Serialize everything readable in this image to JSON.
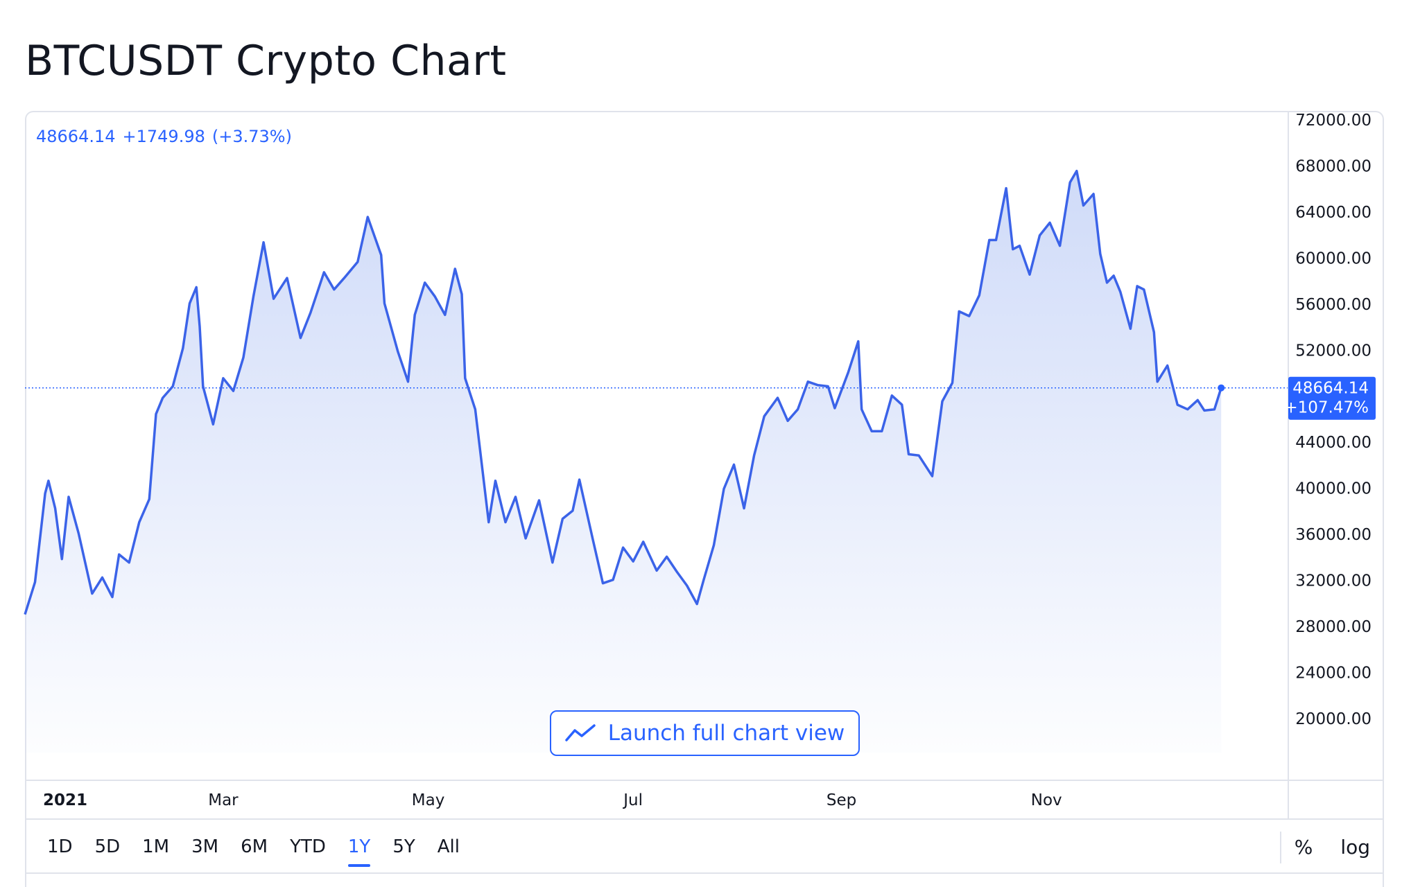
{
  "page": {
    "title": "BTCUSDT Crypto Chart"
  },
  "readout": {
    "last": "48664.14",
    "change": "+1749.98",
    "change_pct": "(+3.73%)"
  },
  "price_tag": {
    "price": "48664.14",
    "pct": "+107.47%"
  },
  "launch_button": {
    "label": "Launch full chart view",
    "icon": "trend-line-icon"
  },
  "ranges": {
    "items": [
      "1D",
      "5D",
      "1M",
      "3M",
      "6M",
      "YTD",
      "1Y",
      "5Y",
      "All"
    ],
    "active": "1Y",
    "percent_label": "%",
    "log_label": "log"
  },
  "colors": {
    "accent": "#2962ff",
    "line": "#3b63e8",
    "fill_top": "#cdd9f8",
    "grid": "#e0e3eb"
  },
  "chart_data": {
    "type": "area",
    "title": "BTCUSDT Crypto Chart",
    "xlabel": "",
    "ylabel": "",
    "ylim": [
      17000,
      75000
    ],
    "x_range": [
      "2021-01-01",
      "2021-12-31"
    ],
    "grid": false,
    "y_ticks": [
      20000,
      24000,
      28000,
      32000,
      36000,
      40000,
      44000,
      48000,
      52000,
      56000,
      60000,
      64000,
      68000,
      72000
    ],
    "y_tick_labels": [
      "20000.00",
      "24000.00",
      "28000.00",
      "32000.00",
      "36000.00",
      "40000.00",
      "44000.00",
      "48000.00",
      "52000.00",
      "56000.00",
      "60000.00",
      "64000.00",
      "68000.00",
      "72000.00"
    ],
    "x_ticks": [
      {
        "date": "2021-01-01",
        "label": "2021",
        "bold": true
      },
      {
        "date": "2021-03-01",
        "label": "Mar",
        "bold": false
      },
      {
        "date": "2021-05-01",
        "label": "May",
        "bold": false
      },
      {
        "date": "2021-07-01",
        "label": "Jul",
        "bold": false
      },
      {
        "date": "2021-09-01",
        "label": "Sep",
        "bold": false
      },
      {
        "date": "2021-11-01",
        "label": "Nov",
        "bold": false
      }
    ],
    "reference_line": 48664.14,
    "series": [
      {
        "points": [
          [
            "2021-01-01",
            29000
          ],
          [
            "2021-01-04",
            31800
          ],
          [
            "2021-01-07",
            39500
          ],
          [
            "2021-01-08",
            40600
          ],
          [
            "2021-01-10",
            38200
          ],
          [
            "2021-01-12",
            33800
          ],
          [
            "2021-01-14",
            39200
          ],
          [
            "2021-01-17",
            36000
          ],
          [
            "2021-01-21",
            30800
          ],
          [
            "2021-01-24",
            32200
          ],
          [
            "2021-01-27",
            30500
          ],
          [
            "2021-01-29",
            34200
          ],
          [
            "2021-02-01",
            33500
          ],
          [
            "2021-02-04",
            37000
          ],
          [
            "2021-02-07",
            39000
          ],
          [
            "2021-02-09",
            46400
          ],
          [
            "2021-02-11",
            47800
          ],
          [
            "2021-02-14",
            48800
          ],
          [
            "2021-02-17",
            52100
          ],
          [
            "2021-02-19",
            56000
          ],
          [
            "2021-02-21",
            57400
          ],
          [
            "2021-02-22",
            54000
          ],
          [
            "2021-02-23",
            48800
          ],
          [
            "2021-02-26",
            45500
          ],
          [
            "2021-03-01",
            49500
          ],
          [
            "2021-03-04",
            48400
          ],
          [
            "2021-03-07",
            51300
          ],
          [
            "2021-03-10",
            56600
          ],
          [
            "2021-03-13",
            61300
          ],
          [
            "2021-03-16",
            56400
          ],
          [
            "2021-03-20",
            58200
          ],
          [
            "2021-03-24",
            53000
          ],
          [
            "2021-03-27",
            55200
          ],
          [
            "2021-03-31",
            58700
          ],
          [
            "2021-04-03",
            57200
          ],
          [
            "2021-04-06",
            58200
          ],
          [
            "2021-04-10",
            59600
          ],
          [
            "2021-04-13",
            63500
          ],
          [
            "2021-04-17",
            60200
          ],
          [
            "2021-04-18",
            56000
          ],
          [
            "2021-04-22",
            51800
          ],
          [
            "2021-04-25",
            49200
          ],
          [
            "2021-04-27",
            55000
          ],
          [
            "2021-04-30",
            57800
          ],
          [
            "2021-05-03",
            56600
          ],
          [
            "2021-05-06",
            55000
          ],
          [
            "2021-05-09",
            59000
          ],
          [
            "2021-05-11",
            56800
          ],
          [
            "2021-05-12",
            49500
          ],
          [
            "2021-05-15",
            46800
          ],
          [
            "2021-05-19",
            37000
          ],
          [
            "2021-05-21",
            40600
          ],
          [
            "2021-05-24",
            37000
          ],
          [
            "2021-05-27",
            39200
          ],
          [
            "2021-05-30",
            35600
          ],
          [
            "2021-06-03",
            38900
          ],
          [
            "2021-06-07",
            33500
          ],
          [
            "2021-06-10",
            37300
          ],
          [
            "2021-06-13",
            38000
          ],
          [
            "2021-06-15",
            40700
          ],
          [
            "2021-06-19",
            35500
          ],
          [
            "2021-06-22",
            31700
          ],
          [
            "2021-06-25",
            32000
          ],
          [
            "2021-06-28",
            34800
          ],
          [
            "2021-07-01",
            33600
          ],
          [
            "2021-07-04",
            35300
          ],
          [
            "2021-07-08",
            32800
          ],
          [
            "2021-07-11",
            34000
          ],
          [
            "2021-07-14",
            32700
          ],
          [
            "2021-07-17",
            31500
          ],
          [
            "2021-07-20",
            29900
          ],
          [
            "2021-07-22",
            32000
          ],
          [
            "2021-07-25",
            35000
          ],
          [
            "2021-07-28",
            39900
          ],
          [
            "2021-07-31",
            42000
          ],
          [
            "2021-08-03",
            38200
          ],
          [
            "2021-08-06",
            42800
          ],
          [
            "2021-08-09",
            46200
          ],
          [
            "2021-08-13",
            47800
          ],
          [
            "2021-08-16",
            45800
          ],
          [
            "2021-08-19",
            46800
          ],
          [
            "2021-08-22",
            49200
          ],
          [
            "2021-08-25",
            48900
          ],
          [
            "2021-08-28",
            48800
          ],
          [
            "2021-08-30",
            46900
          ],
          [
            "2021-09-03",
            50000
          ],
          [
            "2021-09-06",
            52700
          ],
          [
            "2021-09-07",
            46800
          ],
          [
            "2021-09-10",
            44900
          ],
          [
            "2021-09-13",
            44900
          ],
          [
            "2021-09-16",
            48000
          ],
          [
            "2021-09-19",
            47200
          ],
          [
            "2021-09-21",
            42900
          ],
          [
            "2021-09-24",
            42800
          ],
          [
            "2021-09-28",
            41000
          ],
          [
            "2021-10-01",
            47500
          ],
          [
            "2021-10-04",
            49100
          ],
          [
            "2021-10-06",
            55300
          ],
          [
            "2021-10-09",
            54900
          ],
          [
            "2021-10-12",
            56700
          ],
          [
            "2021-10-15",
            61500
          ],
          [
            "2021-10-17",
            61500
          ],
          [
            "2021-10-20",
            66000
          ],
          [
            "2021-10-22",
            60700
          ],
          [
            "2021-10-24",
            61000
          ],
          [
            "2021-10-27",
            58500
          ],
          [
            "2021-10-30",
            61900
          ],
          [
            "2021-11-02",
            63000
          ],
          [
            "2021-11-05",
            61000
          ],
          [
            "2021-11-08",
            66500
          ],
          [
            "2021-11-10",
            67500
          ],
          [
            "2021-11-12",
            64500
          ],
          [
            "2021-11-15",
            65500
          ],
          [
            "2021-11-17",
            60300
          ],
          [
            "2021-11-19",
            57800
          ],
          [
            "2021-11-21",
            58400
          ],
          [
            "2021-11-23",
            57000
          ],
          [
            "2021-11-26",
            53800
          ],
          [
            "2021-11-28",
            57500
          ],
          [
            "2021-11-30",
            57200
          ],
          [
            "2021-12-03",
            53500
          ],
          [
            "2021-12-04",
            49200
          ],
          [
            "2021-12-07",
            50600
          ],
          [
            "2021-12-10",
            47200
          ],
          [
            "2021-12-13",
            46800
          ],
          [
            "2021-12-16",
            47600
          ],
          [
            "2021-12-18",
            46700
          ],
          [
            "2021-12-21",
            46800
          ],
          [
            "2021-12-23",
            48664
          ]
        ]
      }
    ]
  }
}
